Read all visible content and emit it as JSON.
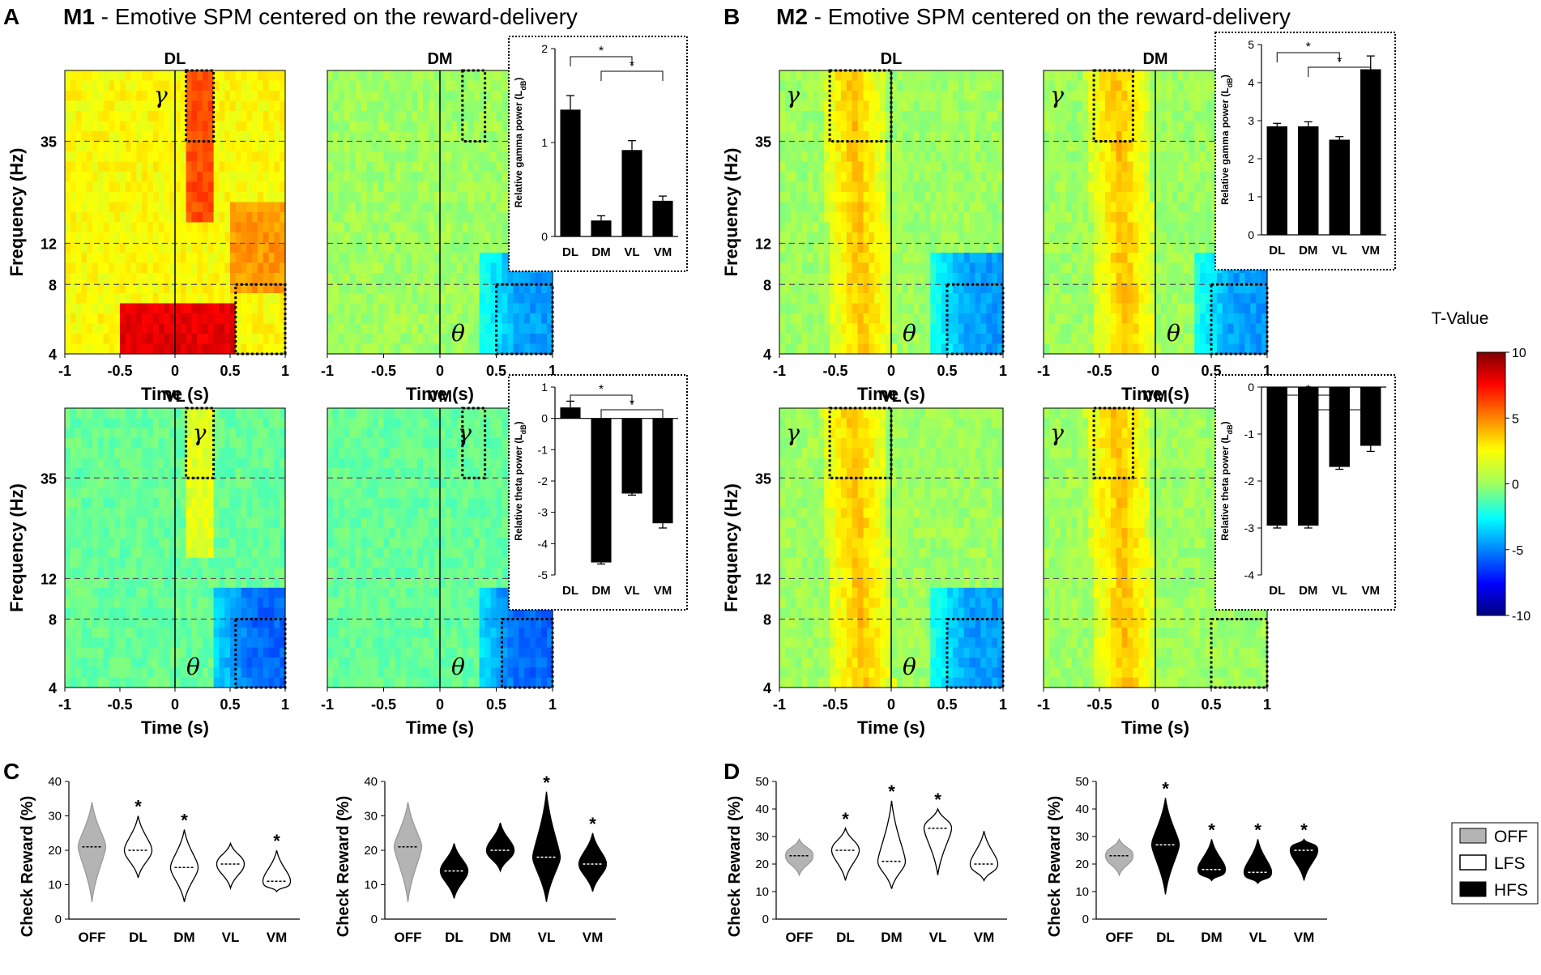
{
  "colors": {
    "bar": "#000000",
    "off": "#b4b4b4",
    "lfs": "#ffffff",
    "hfs": "#000000",
    "frame": "#000000"
  },
  "panels": {
    "A": {
      "letter": "A",
      "title_bold": "M1",
      "title_rest": " - Emotive SPM centered on the reward-delivery"
    },
    "B": {
      "letter": "B",
      "title_bold": "M2",
      "title_rest": " - Emotive SPM centered on the reward-delivery"
    },
    "C": {
      "letter": "C"
    },
    "D": {
      "letter": "D"
    }
  },
  "labels": {
    "freq_axis": "Frequency (Hz)",
    "time_axis": "Time (s)",
    "check_reward": "Check Reward (%)",
    "gamma": "γ",
    "theta": "θ",
    "star": "*",
    "ldb_sub": "dB",
    "gamma_bar_ylabel": "Relative gamma power (L",
    "theta_bar_ylabel": "Relative theta power (L"
  },
  "colorbar": {
    "title": "T-Value",
    "ticks": [
      "10",
      "5",
      "0",
      "-5",
      "-10"
    ]
  },
  "legend": {
    "items": [
      "OFF",
      "LFS",
      "HFS"
    ]
  },
  "chart_data": [
    {
      "type": "heatmap",
      "id": "M1-DL",
      "title": "DL",
      "xlabel": "Time (s)",
      "ylabel": "Frequency (Hz)",
      "xticks": [
        "-1",
        "-0.5",
        "0",
        "0.5",
        "1"
      ],
      "yticks": [
        "4",
        "8",
        "12",
        "35"
      ],
      "xlim": [
        -1,
        1
      ],
      "ylim": [
        4,
        60
      ],
      "vline": 0,
      "hlines": [
        8,
        12,
        35
      ],
      "colorscale": "T-Value",
      "clim": [
        -10,
        10
      ],
      "pattern": "warm",
      "gamma_band": true,
      "theta_low": true,
      "roi": [
        {
          "band": "gamma",
          "time": [
            0.1,
            0.35
          ]
        },
        {
          "band": "theta",
          "time": [
            0.55,
            1.0
          ]
        }
      ]
    },
    {
      "type": "heatmap",
      "id": "M1-DM",
      "title": "DM",
      "xlabel": "Time (s)",
      "xticks": [
        "-1",
        "-0.5",
        "0",
        "0.5",
        "1"
      ],
      "xlim": [
        -1,
        1
      ],
      "ylim": [
        4,
        60
      ],
      "vline": 0,
      "hlines": [
        8,
        12,
        35
      ],
      "colorscale": "T-Value",
      "clim": [
        -10,
        10
      ],
      "pattern": "mid",
      "theta_blue": true,
      "theta_label": "θ",
      "roi": [
        {
          "band": "gamma",
          "time": [
            0.2,
            0.4
          ]
        },
        {
          "band": "theta",
          "time": [
            0.5,
            1.0
          ]
        }
      ]
    },
    {
      "type": "heatmap",
      "id": "M1-VL",
      "title": "VL",
      "xlabel": "Time (s)",
      "ylabel": "Frequency (Hz)",
      "xticks": [
        "-1",
        "-0.5",
        "0",
        "0.5",
        "1"
      ],
      "yticks": [
        "4",
        "8",
        "12",
        "35"
      ],
      "xlim": [
        -1,
        1
      ],
      "ylim": [
        4,
        60
      ],
      "vline": 0,
      "hlines": [
        8,
        12,
        35
      ],
      "colorscale": "T-Value",
      "clim": [
        -10,
        10
      ],
      "pattern": "cool",
      "gamma_band": true,
      "theta_blue": true,
      "gamma_label": "γ",
      "theta_label": "θ",
      "roi": [
        {
          "band": "gamma",
          "time": [
            0.1,
            0.35
          ]
        },
        {
          "band": "theta",
          "time": [
            0.55,
            1.0
          ]
        }
      ]
    },
    {
      "type": "heatmap",
      "id": "M1-VM",
      "title": "VM",
      "xlabel": "Time (s)",
      "xticks": [
        "-1",
        "-0.5",
        "0",
        "0.5",
        "1"
      ],
      "xlim": [
        -1,
        1
      ],
      "ylim": [
        4,
        60
      ],
      "vline": 0,
      "hlines": [
        8,
        12,
        35
      ],
      "colorscale": "T-Value",
      "clim": [
        -10,
        10
      ],
      "pattern": "cool",
      "theta_blue": true,
      "gamma_label": "γ",
      "theta_label": "θ",
      "roi": [
        {
          "band": "gamma",
          "time": [
            0.2,
            0.4
          ]
        },
        {
          "band": "theta",
          "time": [
            0.55,
            1.0
          ]
        }
      ]
    },
    {
      "type": "heatmap",
      "id": "M2-DL",
      "title": "DL",
      "xlabel": "Time (s)",
      "ylabel": "Frequency (Hz)",
      "xticks": [
        "-1",
        "-0.5",
        "0",
        "0.5",
        "1"
      ],
      "yticks": [
        "4",
        "8",
        "12",
        "35"
      ],
      "xlim": [
        -1,
        1
      ],
      "ylim": [
        4,
        60
      ],
      "vline": 0,
      "hlines": [
        8,
        12,
        35
      ],
      "colorscale": "T-Value",
      "clim": [
        -10,
        10
      ],
      "pattern": "mid",
      "yellow_band": true,
      "theta_blue": true,
      "gamma_label": "γ",
      "theta_label": "θ",
      "roi": [
        {
          "band": "gamma",
          "time": [
            -0.55,
            0.0
          ]
        },
        {
          "band": "theta",
          "time": [
            0.5,
            1.0
          ]
        }
      ]
    },
    {
      "type": "heatmap",
      "id": "M2-DM",
      "title": "DM",
      "xlabel": "Time (s)",
      "xticks": [
        "-1",
        "-0.5",
        "0",
        "0.5",
        "1"
      ],
      "xlim": [
        -1,
        1
      ],
      "ylim": [
        4,
        60
      ],
      "vline": 0,
      "hlines": [
        8,
        12,
        35
      ],
      "colorscale": "T-Value",
      "clim": [
        -10,
        10
      ],
      "pattern": "mid",
      "yellow_band": true,
      "theta_blue": true,
      "gamma_label": "γ",
      "theta_label": "θ",
      "roi": [
        {
          "band": "gamma",
          "time": [
            -0.55,
            -0.2
          ]
        },
        {
          "band": "theta",
          "time": [
            0.5,
            1.0
          ]
        }
      ]
    },
    {
      "type": "heatmap",
      "id": "M2-VL",
      "title": "VL",
      "xlabel": "Time (s)",
      "ylabel": "Frequency (Hz)",
      "xticks": [
        "-1",
        "-0.5",
        "0",
        "0.5",
        "1"
      ],
      "yticks": [
        "4",
        "8",
        "12",
        "35"
      ],
      "xlim": [
        -1,
        1
      ],
      "ylim": [
        4,
        60
      ],
      "vline": 0,
      "hlines": [
        8,
        12,
        35
      ],
      "colorscale": "T-Value",
      "clim": [
        -10,
        10
      ],
      "pattern": "mid",
      "yellow_band": true,
      "theta_blue": true,
      "gamma_label": "γ",
      "theta_label": "θ",
      "roi": [
        {
          "band": "gamma",
          "time": [
            -0.55,
            0.0
          ]
        },
        {
          "band": "theta",
          "time": [
            0.5,
            1.0
          ]
        }
      ]
    },
    {
      "type": "heatmap",
      "id": "M2-VM",
      "title": "VM",
      "xlabel": "Time (s)",
      "xticks": [
        "-1",
        "-0.5",
        "0",
        "0.5",
        "1"
      ],
      "xlim": [
        -1,
        1
      ],
      "ylim": [
        4,
        60
      ],
      "vline": 0,
      "hlines": [
        8,
        12,
        35
      ],
      "colorscale": "T-Value",
      "clim": [
        -10,
        10
      ],
      "pattern": "mid",
      "yellow_band": true,
      "gamma_label": "γ",
      "roi": [
        {
          "band": "gamma",
          "time": [
            -0.55,
            -0.2
          ]
        },
        {
          "band": "theta",
          "time": [
            0.5,
            1.0
          ]
        }
      ]
    },
    {
      "type": "bar",
      "id": "M1-gamma",
      "categories": [
        "DL",
        "DM",
        "VL",
        "VM"
      ],
      "values": [
        1.35,
        0.17,
        0.92,
        0.38
      ],
      "errors": [
        0.15,
        0.05,
        0.1,
        0.05
      ],
      "ylim": [
        0,
        2
      ],
      "yticks": [
        "0",
        "1",
        "2"
      ],
      "ylabel": "Relative gamma power (LdB)"
    },
    {
      "type": "bar",
      "id": "M1-theta",
      "categories": [
        "DL",
        "DM",
        "VL",
        "VM"
      ],
      "values": [
        0.35,
        -4.6,
        -2.4,
        -3.35
      ],
      "errors": [
        0.2,
        0.05,
        0.05,
        0.15
      ],
      "ylim": [
        -5,
        1
      ],
      "yticks": [
        "1",
        "0",
        "-1",
        "-2",
        "-3",
        "-4",
        "-5"
      ],
      "ylabel": "Relative theta power (LdB)"
    },
    {
      "type": "bar",
      "id": "M2-gamma",
      "categories": [
        "DL",
        "DM",
        "VL",
        "VM"
      ],
      "values": [
        2.85,
        2.85,
        2.5,
        4.35
      ],
      "errors": [
        0.08,
        0.12,
        0.08,
        0.35
      ],
      "ylim": [
        0,
        5
      ],
      "yticks": [
        "0",
        "1",
        "2",
        "3",
        "4",
        "5"
      ],
      "ylabel": "Relative gamma power (LdB)"
    },
    {
      "type": "bar",
      "id": "M2-theta",
      "categories": [
        "DL",
        "DM",
        "VL",
        "VM"
      ],
      "values": [
        -2.95,
        -2.95,
        -1.7,
        -1.25
      ],
      "errors": [
        0.05,
        0.05,
        0.05,
        0.12
      ],
      "ylim": [
        -4,
        0
      ],
      "yticks": [
        "0",
        "-1",
        "-2",
        "-3",
        "-4"
      ],
      "ylabel": "Relative theta power (LdB)"
    },
    {
      "type": "violin",
      "id": "C-LFS",
      "ylabel": "Check Reward (%)",
      "categories": [
        "OFF",
        "DL",
        "DM",
        "VL",
        "VM"
      ],
      "stim": [
        "OFF",
        "LFS",
        "LFS",
        "LFS",
        "LFS"
      ],
      "median": [
        21,
        20,
        15,
        16,
        11
      ],
      "range": [
        [
          5,
          34
        ],
        [
          12,
          30
        ],
        [
          5,
          26
        ],
        [
          9,
          22
        ],
        [
          8,
          20
        ]
      ],
      "significant": [
        false,
        true,
        true,
        false,
        true
      ],
      "ylim": [
        0,
        40
      ],
      "yticks": [
        "0",
        "10",
        "20",
        "30",
        "40"
      ]
    },
    {
      "type": "violin",
      "id": "C-HFS",
      "ylabel": "Check Reward (%)",
      "categories": [
        "OFF",
        "DL",
        "DM",
        "VL",
        "VM"
      ],
      "stim": [
        "OFF",
        "HFS",
        "HFS",
        "HFS",
        "HFS"
      ],
      "median": [
        21,
        14,
        20,
        18,
        16
      ],
      "range": [
        [
          5,
          34
        ],
        [
          6,
          22
        ],
        [
          14,
          28
        ],
        [
          5,
          37
        ],
        [
          8,
          25
        ]
      ],
      "significant": [
        false,
        false,
        false,
        true,
        true
      ],
      "ylim": [
        0,
        40
      ],
      "yticks": [
        "0",
        "10",
        "20",
        "30",
        "40"
      ]
    },
    {
      "type": "violin",
      "id": "D-LFS",
      "ylabel": "Check Reward (%)",
      "categories": [
        "OFF",
        "DL",
        "DM",
        "VL",
        "VM"
      ],
      "stim": [
        "OFF",
        "LFS",
        "LFS",
        "LFS",
        "LFS"
      ],
      "median": [
        23,
        25,
        21,
        33,
        20
      ],
      "range": [
        [
          16,
          29
        ],
        [
          14,
          33
        ],
        [
          11,
          43
        ],
        [
          16,
          40
        ],
        [
          14,
          32
        ]
      ],
      "significant": [
        false,
        true,
        true,
        true,
        false
      ],
      "ylim": [
        0,
        50
      ],
      "yticks": [
        "0",
        "10",
        "20",
        "30",
        "40",
        "50"
      ]
    },
    {
      "type": "violin",
      "id": "D-HFS",
      "ylabel": "Check Reward (%)",
      "categories": [
        "OFF",
        "DL",
        "DM",
        "VL",
        "VM"
      ],
      "stim": [
        "OFF",
        "HFS",
        "HFS",
        "HFS",
        "HFS"
      ],
      "median": [
        23,
        27,
        18,
        17,
        25
      ],
      "range": [
        [
          16,
          29
        ],
        [
          9,
          44
        ],
        [
          14,
          29
        ],
        [
          13,
          29
        ],
        [
          14,
          29
        ]
      ],
      "significant": [
        false,
        true,
        true,
        true,
        true
      ],
      "ylim": [
        0,
        50
      ],
      "yticks": [
        "0",
        "10",
        "20",
        "30",
        "40",
        "50"
      ]
    }
  ]
}
